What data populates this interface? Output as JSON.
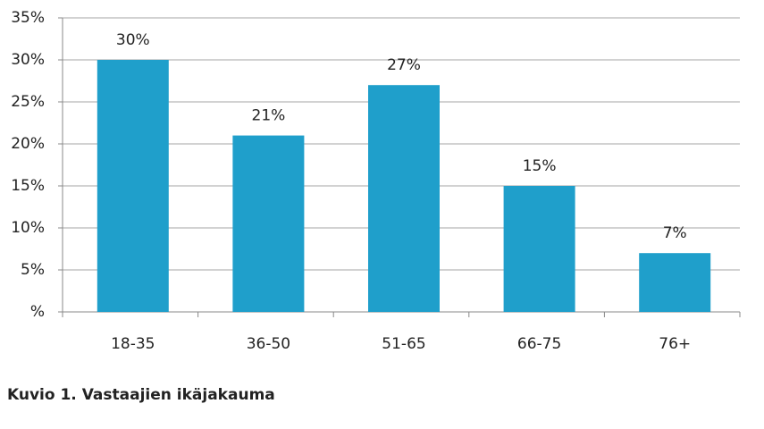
{
  "chart_data": {
    "type": "bar",
    "title": "Kuvio 1. Vastaajien ikäjakauma",
    "categories": [
      "18-35",
      "36-50",
      "51-65",
      "66-75",
      "76+"
    ],
    "values": [
      30,
      21,
      27,
      15,
      7
    ],
    "value_labels": [
      "30%",
      "21%",
      "27%",
      "15%",
      "7%"
    ],
    "color": "#1f9fcb",
    "ylim": [
      0,
      35
    ],
    "yticks": [
      {
        "value": 0,
        "label": "%"
      },
      {
        "value": 5,
        "label": "5%"
      },
      {
        "value": 10,
        "label": "10%"
      },
      {
        "value": 15,
        "label": "15%"
      },
      {
        "value": 20,
        "label": "20%"
      },
      {
        "value": 25,
        "label": "25%"
      },
      {
        "value": 30,
        "label": "30%"
      },
      {
        "value": 35,
        "label": "35%"
      }
    ],
    "grid": true
  }
}
